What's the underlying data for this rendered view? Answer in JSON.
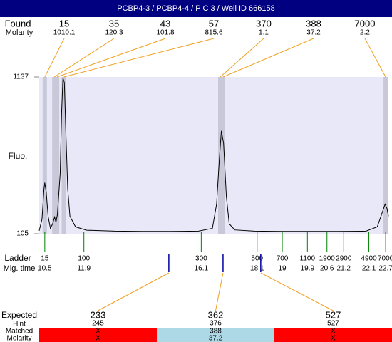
{
  "header": {
    "title": "PCBP4-3 / PCBP4-4 / P C 3 / Well ID 666158"
  },
  "chart_data": {
    "type": "line",
    "ylabel": "Fluo.",
    "color": "#000000",
    "xlim": [
      10.3,
      22.8
    ],
    "ylim": [
      105,
      1137
    ],
    "yticks": [
      105,
      1137
    ],
    "x": [
      10.3,
      10.4,
      10.47,
      10.5,
      10.55,
      10.62,
      10.7,
      10.78,
      10.85,
      10.9,
      10.95,
      11.05,
      11.1,
      11.15,
      11.2,
      11.25,
      11.32,
      11.4,
      11.6,
      12.0,
      13,
      14,
      15,
      16,
      16.5,
      16.65,
      16.75,
      16.82,
      16.9,
      17.0,
      17.1,
      17.3,
      18,
      19,
      20,
      21,
      22,
      22.4,
      22.55,
      22.68,
      22.75,
      22.8
    ],
    "values": [
      125,
      200,
      400,
      441,
      380,
      220,
      140,
      170,
      215,
      180,
      230,
      500,
      900,
      1130,
      1100,
      800,
      400,
      220,
      150,
      128,
      122,
      120,
      120,
      122,
      140,
      300,
      600,
      782,
      700,
      350,
      170,
      130,
      122,
      120,
      120,
      120,
      122,
      150,
      230,
      299,
      270,
      220
    ]
  },
  "found": {
    "label": "Found",
    "sublabel": "Molarity",
    "peaks": [
      {
        "size": 15,
        "molarity": 1010.1,
        "mig_time": 10.5
      },
      {
        "size": 35,
        "molarity": 120.3,
        "mig_time": 10.84
      },
      {
        "size": 43,
        "molarity": 101.8,
        "mig_time": 10.94
      },
      {
        "size": 57,
        "molarity": 815.6,
        "mig_time": 11.18
      },
      {
        "size": 370,
        "molarity": 1.1,
        "mig_time": 16.78
      },
      {
        "size": 388,
        "molarity": 37.2,
        "mig_time": 16.88
      },
      {
        "size": 7000,
        "molarity": 2.2,
        "mig_time": 22.7
      }
    ]
  },
  "ladder": {
    "label": "Ladder",
    "sublabel": "Mig. time",
    "bands": [
      {
        "size": 15,
        "mig_time": 10.5
      },
      {
        "size": 100,
        "mig_time": 11.9
      },
      {
        "size": 300,
        "mig_time": 16.1
      },
      {
        "size": 500,
        "mig_time": 18.1
      },
      {
        "size": 700,
        "mig_time": 19
      },
      {
        "size": 1100,
        "mig_time": 19.9
      },
      {
        "size": 1900,
        "mig_time": 20.6
      },
      {
        "size": 2900,
        "mig_time": 21.2
      },
      {
        "size": 4900,
        "mig_time": 22.1
      },
      {
        "size": 7000,
        "mig_time": 22.7
      }
    ]
  },
  "expected": {
    "label": "Expected",
    "hint_label": "Hint",
    "matched_label": "Matched",
    "molarity_label": "Molarity",
    "items": [
      {
        "size": 233,
        "hint": 245,
        "matched": "X",
        "molarity": "X",
        "mig_time": 14.94
      },
      {
        "size": 362,
        "hint": 376,
        "matched": 388,
        "molarity": 37.2,
        "mig_time": 16.88
      },
      {
        "size": 527,
        "hint": 527,
        "matched": "X",
        "molarity": "X",
        "mig_time": 18.23
      }
    ]
  }
}
